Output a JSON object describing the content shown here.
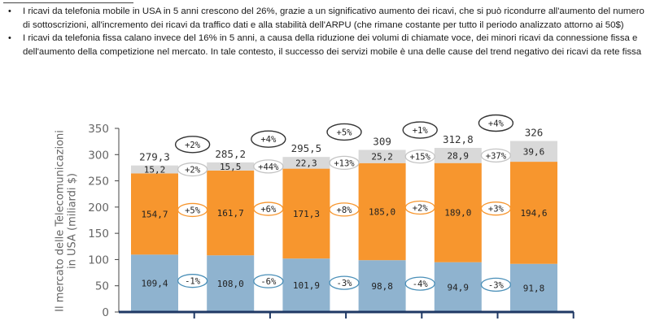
{
  "bullets": [
    "I ricavi da telefonia mobile in USA in 5 anni crescono del 26%, grazie a un significativo aumento dei ricavi, che si può ricondurre all'aumento del numero di sottoscrizioni, all'incremento dei ricavi da traffico dati e alla stabilità dell'ARPU (che rimane costante per tutto il periodo analizzato attorno ai 50$)",
    "I ricavi da telefonia fissa calano invece del 16% in 5 anni, a causa della riduzione dei volumi di chiamate voce, dei minori ricavi da connessione fissa e dell'aumento della competizione nel mercato. In tale contesto, il successo dei servizi mobile è una delle cause del trend negativo dei ricavi da rete fissa"
  ],
  "chart_data": {
    "type": "bar",
    "stacked": true,
    "ylabel": "Il mercato delle Telecomunicazioni in USA (miliardi $)",
    "ylim": [
      0,
      350
    ],
    "yticks": [
      0,
      50,
      100,
      150,
      200,
      250,
      300,
      350
    ],
    "categories": [
      "",
      "",
      "",
      "",
      "",
      ""
    ],
    "series": [
      {
        "values": [
          109.4,
          108.0,
          101.9,
          98.8,
          94.9,
          91.8
        ],
        "labels": [
          "109,4",
          "108,0",
          "101,9",
          "98,8",
          "94,9",
          "91,8"
        ],
        "growth": [
          "-1%",
          "-6%",
          "-3%",
          "-4%",
          "-3%"
        ]
      },
      {
        "values": [
          154.7,
          161.7,
          171.3,
          185.0,
          189.0,
          194.6
        ],
        "labels": [
          "154,7",
          "161,7",
          "171,3",
          "185,0",
          "189,0",
          "194,6"
        ],
        "growth": [
          "+5%",
          "+6%",
          "+8%",
          "+2%",
          "+3%"
        ]
      },
      {
        "values": [
          15.2,
          15.5,
          22.3,
          25.2,
          28.9,
          39.6
        ],
        "labels": [
          "15,2",
          "15,5",
          "22,3",
          "25,2",
          "28,9",
          "39,6"
        ],
        "growth": [
          "+2%",
          "+44%",
          "+13%",
          "+15%",
          "+37%"
        ]
      }
    ],
    "totals": [
      279.3,
      285.2,
      295.5,
      309,
      312.8,
      326
    ],
    "total_labels": [
      "279,3",
      "285,2",
      "295,5",
      "309",
      "312,8",
      "326"
    ],
    "total_growth": [
      "+2%",
      "+4%",
      "+5%",
      "+1%",
      "+4%"
    ],
    "colors": {
      "series": [
        "#8fb3cf",
        "#f7962e",
        "#d9d9d9"
      ],
      "seg_pill_border": [
        "#4a8fb8",
        "#f7962e",
        "#c4c4c4"
      ],
      "total_pill_border": "#333333",
      "axis": "#1f3864"
    }
  }
}
